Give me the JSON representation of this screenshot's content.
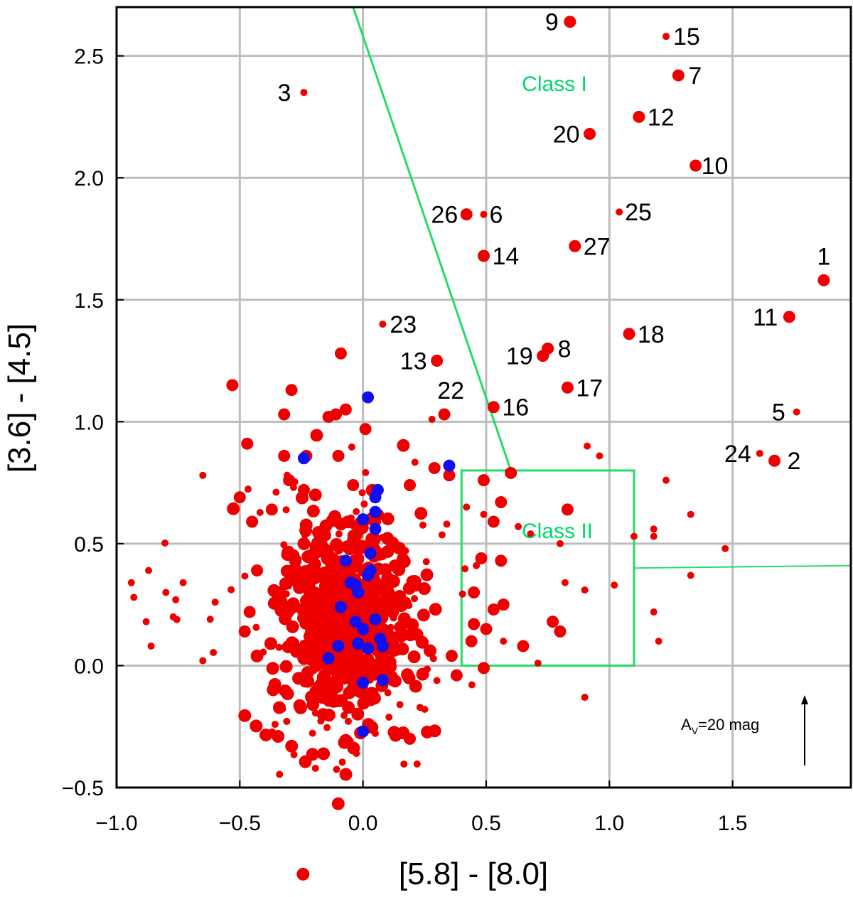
{
  "chart_data": {
    "type": "scatter",
    "xlabel": "[5.8] - [8.0]",
    "ylabel": "[3.6] - [4.5]",
    "xlim": [
      -1.0,
      1.98
    ],
    "ylim": [
      -0.5,
      2.7
    ],
    "xticks": [
      "−1.0",
      "−0.5",
      "0.0",
      "0.5",
      "1.0",
      "1.5"
    ],
    "xtick_values": [
      -1.0,
      -0.5,
      0.0,
      0.5,
      1.0,
      1.5
    ],
    "yticks": [
      "−0.5",
      "0.0",
      "0.5",
      "1.0",
      "1.5",
      "2.0",
      "2.5"
    ],
    "ytick_values": [
      -0.5,
      0.0,
      0.5,
      1.0,
      1.5,
      2.0,
      2.5
    ],
    "grid": true,
    "colors": {
      "red": "#ee0000",
      "blue": "#1010ee",
      "class_line": "#22dd66"
    },
    "labeled_points": [
      {
        "label": "1",
        "x": 1.87,
        "y": 1.58,
        "big": true
      },
      {
        "label": "2",
        "x": 1.67,
        "y": 0.84,
        "big": true
      },
      {
        "label": "3",
        "x": -0.24,
        "y": 2.35,
        "big": false
      },
      {
        "label": "5",
        "x": 1.76,
        "y": 1.04,
        "big": false
      },
      {
        "label": "6",
        "x": 0.49,
        "y": 1.85,
        "big": false
      },
      {
        "label": "7",
        "x": 1.28,
        "y": 2.42,
        "big": true
      },
      {
        "label": "8",
        "x": 0.75,
        "y": 1.3,
        "big": true
      },
      {
        "label": "9",
        "x": 0.84,
        "y": 2.64,
        "big": true
      },
      {
        "label": "10",
        "x": 1.35,
        "y": 2.05,
        "big": true
      },
      {
        "label": "11",
        "x": 1.73,
        "y": 1.43,
        "big": true
      },
      {
        "label": "12",
        "x": 1.12,
        "y": 2.25,
        "big": true
      },
      {
        "label": "13",
        "x": 0.3,
        "y": 1.25,
        "big": true
      },
      {
        "label": "14",
        "x": 0.49,
        "y": 1.68,
        "big": true
      },
      {
        "label": "15",
        "x": 1.23,
        "y": 2.58,
        "big": false
      },
      {
        "label": "16",
        "x": 0.53,
        "y": 1.06,
        "big": true
      },
      {
        "label": "17",
        "x": 0.83,
        "y": 1.14,
        "big": true
      },
      {
        "label": "18",
        "x": 1.08,
        "y": 1.36,
        "big": true
      },
      {
        "label": "19",
        "x": 0.73,
        "y": 1.27,
        "big": true
      },
      {
        "label": "20",
        "x": 0.92,
        "y": 2.18,
        "big": true
      },
      {
        "label": "22",
        "x": 0.33,
        "y": 1.03,
        "big": true
      },
      {
        "label": "23",
        "x": 0.08,
        "y": 1.4,
        "big": false
      },
      {
        "label": "24",
        "x": 1.61,
        "y": 0.87,
        "big": false
      },
      {
        "label": "25",
        "x": 1.04,
        "y": 1.86,
        "big": false
      },
      {
        "label": "26",
        "x": 0.42,
        "y": 1.85,
        "big": true
      },
      {
        "label": "27",
        "x": 0.86,
        "y": 1.72,
        "big": true
      }
    ],
    "blue_points": [
      [
        0.02,
        1.1
      ],
      [
        -0.24,
        0.85
      ],
      [
        0.35,
        0.82
      ],
      [
        0.06,
        0.72
      ],
      [
        0.05,
        0.69
      ],
      [
        0.05,
        0.63
      ],
      [
        0.0,
        0.6
      ],
      [
        0.05,
        0.56
      ],
      [
        0.03,
        0.46
      ],
      [
        -0.07,
        0.43
      ],
      [
        0.03,
        0.39
      ],
      [
        0.02,
        0.37
      ],
      [
        -0.05,
        0.34
      ],
      [
        -0.03,
        0.33
      ],
      [
        -0.02,
        0.3
      ],
      [
        -0.09,
        0.24
      ],
      [
        0.05,
        0.19
      ],
      [
        -0.03,
        0.18
      ],
      [
        0.0,
        0.15
      ],
      [
        -0.02,
        0.09
      ],
      [
        0.07,
        0.11
      ],
      [
        0.02,
        0.07
      ],
      [
        0.08,
        0.08
      ],
      [
        -0.1,
        0.08
      ],
      [
        -0.14,
        0.03
      ],
      [
        0.08,
        -0.06
      ],
      [
        0.0,
        -0.07
      ],
      [
        0.0,
        -0.27
      ]
    ],
    "red_points_big": [
      [
        -0.53,
        1.15
      ],
      [
        -0.29,
        1.13
      ],
      [
        -0.32,
        1.03
      ],
      [
        -0.09,
        1.28
      ],
      [
        -0.14,
        1.02
      ],
      [
        -0.11,
        1.03
      ],
      [
        -0.07,
        1.05
      ],
      [
        0.01,
        0.97
      ],
      [
        -0.23,
        0.86
      ],
      [
        -0.47,
        0.91
      ],
      [
        -0.32,
        0.86
      ],
      [
        -0.3,
        0.76
      ],
      [
        -0.24,
        0.72
      ],
      [
        -0.1,
        0.86
      ],
      [
        -0.04,
        0.74
      ],
      [
        0.19,
        0.74
      ],
      [
        0.29,
        0.81
      ],
      [
        0.35,
        0.78
      ],
      [
        0.6,
        0.79
      ],
      [
        0.49,
        0.76
      ],
      [
        0.56,
        0.67
      ],
      [
        0.83,
        0.64
      ],
      [
        0.53,
        0.59
      ],
      [
        0.48,
        0.44
      ],
      [
        0.56,
        0.43
      ],
      [
        0.65,
        0.08
      ],
      [
        0.77,
        0.18
      ],
      [
        0.8,
        0.14
      ],
      [
        0.45,
        0.3
      ],
      [
        0.53,
        0.23
      ],
      [
        0.57,
        0.25
      ],
      [
        0.5,
        0.15
      ],
      [
        0.49,
        -0.01
      ],
      [
        0.19,
        -0.3
      ],
      [
        0.38,
        -0.04
      ],
      [
        -0.5,
        0.69
      ],
      [
        -0.45,
        0.59
      ],
      [
        -0.43,
        0.39
      ],
      [
        -0.37,
        0.64
      ],
      [
        -0.33,
        0.26
      ],
      [
        0.44,
        0.1
      ],
      [
        0.45,
        0.17
      ],
      [
        0.36,
        0.04
      ],
      [
        -0.48,
        0.14
      ],
      [
        -0.46,
        0.22
      ]
    ],
    "red_points_small": [
      [
        -0.94,
        0.34
      ],
      [
        -0.93,
        0.28
      ],
      [
        -0.88,
        0.18
      ],
      [
        -0.86,
        0.08
      ],
      [
        -0.87,
        0.39
      ],
      [
        -0.8,
        0.3
      ],
      [
        -0.77,
        0.2
      ],
      [
        -0.73,
        0.34
      ],
      [
        -0.76,
        0.27
      ],
      [
        -0.65,
        0.78
      ],
      [
        -0.65,
        0.02
      ],
      [
        -0.6,
        0.26
      ],
      [
        -0.62,
        0.19
      ],
      [
        0.28,
        1.01
      ],
      [
        0.49,
        0.62
      ],
      [
        0.42,
        0.65
      ],
      [
        0.34,
        0.58
      ],
      [
        0.91,
        0.9
      ],
      [
        0.96,
        0.86
      ],
      [
        1.23,
        0.76
      ],
      [
        1.33,
        0.62
      ],
      [
        1.47,
        0.48
      ],
      [
        1.1,
        0.53
      ],
      [
        1.18,
        0.56
      ],
      [
        1.18,
        0.53
      ],
      [
        0.8,
        0.5
      ],
      [
        0.82,
        0.34
      ],
      [
        0.9,
        0.31
      ],
      [
        1.02,
        0.33
      ],
      [
        1.18,
        0.22
      ],
      [
        1.2,
        0.1
      ],
      [
        1.33,
        0.37
      ],
      [
        0.71,
        0.01
      ],
      [
        0.9,
        -0.13
      ],
      [
        0.63,
        0.57
      ],
      [
        0.68,
        0.54
      ],
      [
        0.57,
        0.1
      ],
      [
        0.46,
        0.41
      ]
    ],
    "class_lines": {
      "class1_boundary": [
        [
          -0.04,
          2.7
        ],
        [
          0.6,
          0.8
        ]
      ],
      "class2_box": [
        [
          0.4,
          0.0
        ],
        [
          1.1,
          0.8
        ]
      ],
      "class2_extension": [
        [
          1.1,
          0.4
        ],
        [
          1.98,
          0.41
        ]
      ]
    },
    "annotations": {
      "class1": "Class I",
      "class2": "Class II",
      "av_main": "A",
      "av_sub": "V",
      "av_rest": "=20 mag"
    },
    "cluster": {
      "cx": -0.07,
      "cy": 0.18,
      "sx": 0.14,
      "sy": 0.22,
      "n_big": 520,
      "n_small": 160,
      "seed": 7
    }
  }
}
